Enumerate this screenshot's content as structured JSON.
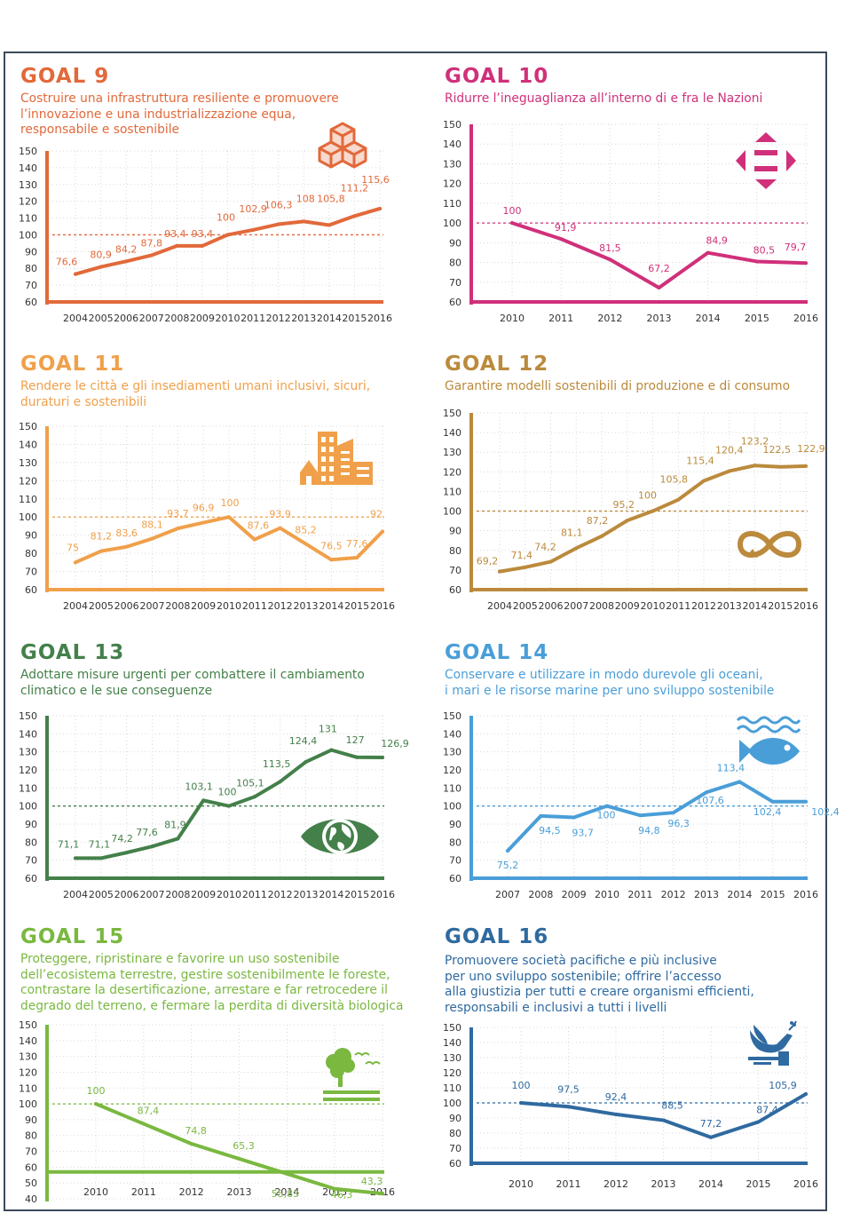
{
  "panels": [
    {
      "goal": "GOAL 9",
      "subtitle": [
        "Costruire una infrastruttura resiliente e promuovere",
        "l’innovazione e una industrializzazione equa,",
        "responsabile e sostenibile"
      ],
      "color": "#e2693a",
      "icon": "cubes-icon"
    },
    {
      "goal": "GOAL 10",
      "subtitle": [
        "Ridurre l’ineguaglianza all’interno di e fra le Nazioni"
      ],
      "color": "#d0307a",
      "icon": "equality-arrows-icon"
    },
    {
      "goal": "GOAL 11",
      "subtitle": [
        "Rendere le città e gli insediamenti umani inclusivi, sicuri,",
        "duraturi e sostenibili"
      ],
      "color": "#f0a04a",
      "icon": "city-buildings-icon"
    },
    {
      "goal": "GOAL 12",
      "subtitle": [
        "Garantire modelli sostenibili di produzione e di consumo"
      ],
      "color": "#bb8a3c",
      "icon": "infinity-icon"
    },
    {
      "goal": "GOAL 13",
      "subtitle": [
        "Adottare misure urgenti per combattere il cambiamento",
        "climatico e le sue conseguenze"
      ],
      "color": "#44804a",
      "icon": "eye-globe-icon"
    },
    {
      "goal": "GOAL 14",
      "subtitle": [
        "Conservare e utilizzare in modo durevole gli oceani,",
        "i mari e le risorse marine per uno sviluppo sostenibile"
      ],
      "color": "#4a9ed8",
      "icon": "fish-waves-icon"
    },
    {
      "goal": "GOAL 15",
      "subtitle": [
        "Proteggere, ripristinare e favorire un uso sostenibile",
        "dell’ecosistema terrestre, gestire sostenibilmente le foreste,",
        "contrastare la desertificazione, arrestare e far retrocedere il",
        "degrado del terreno, e fermare la perdita di diversità biologica"
      ],
      "color": "#7ab840",
      "icon": "tree-birds-icon"
    },
    {
      "goal": "GOAL 16",
      "subtitle": [
        "Promuovere società pacifiche e più inclusive",
        "per uno sviluppo sostenibile; offrire l’accesso",
        "alla giustizia per tutti e creare organismi efficienti,",
        "responsabili e inclusivi a tutti i livelli"
      ],
      "color": "#2f6aa0",
      "icon": "dove-gavel-icon"
    }
  ],
  "chart_data": [
    {
      "type": "line",
      "goal": "GOAL 9",
      "x": [
        "2004",
        "2005",
        "2006",
        "2007",
        "2008",
        "2009",
        "2010",
        "2011",
        "2012",
        "2013",
        "2014",
        "2015",
        "2016"
      ],
      "values": [
        76.6,
        80.9,
        84.2,
        87.8,
        93.4,
        93.4,
        100,
        102.9,
        106.3,
        108,
        105.8,
        111.2,
        115.6
      ],
      "labels": [
        "76,6",
        "80,9",
        "84,2",
        "87,8",
        "93,4",
        "93,4",
        "100",
        "102,9",
        "106,3",
        "108",
        "105,8",
        "111,2",
        "115,6"
      ],
      "yticks": [
        "60",
        "70",
        "80",
        "90",
        "100",
        "110",
        "120",
        "130",
        "140",
        "150"
      ],
      "ylim": [
        60,
        150
      ],
      "reference": 100
    },
    {
      "type": "line",
      "goal": "GOAL 10",
      "x": [
        "2010",
        "2011",
        "2012",
        "2013",
        "2014",
        "2015",
        "2016"
      ],
      "values": [
        100,
        91.9,
        81.5,
        67.2,
        84.9,
        80.5,
        79.7
      ],
      "labels": [
        "100",
        "91,9",
        "81,5",
        "67,2",
        "84,9",
        "80,5",
        "79,7"
      ],
      "yticks": [
        "60",
        "70",
        "80",
        "90",
        "100",
        "110",
        "120",
        "130",
        "140",
        "150"
      ],
      "ylim": [
        60,
        150
      ],
      "reference": 100
    },
    {
      "type": "line",
      "goal": "GOAL 11",
      "x": [
        "2004",
        "2005",
        "2006",
        "2007",
        "2008",
        "2009",
        "2010",
        "2011",
        "2012",
        "2013",
        "2014",
        "2015",
        "2016"
      ],
      "values": [
        75,
        81.2,
        83.6,
        88.1,
        93.7,
        96.9,
        100,
        87.6,
        93.9,
        85.2,
        76.5,
        77.6,
        92
      ],
      "labels": [
        "75",
        "81,2",
        "83,6",
        "88,1",
        "93,7",
        "96,9",
        "100",
        "87,6",
        "93,9",
        "85,2",
        "76,5",
        "77,6",
        "92"
      ],
      "yticks": [
        "60",
        "70",
        "80",
        "90",
        "100",
        "110",
        "120",
        "130",
        "140",
        "150"
      ],
      "ylim": [
        60,
        150
      ],
      "reference": 100
    },
    {
      "type": "line",
      "goal": "GOAL 12",
      "x": [
        "2004",
        "2005",
        "2006",
        "2007",
        "2008",
        "2009",
        "2010",
        "2011",
        "2012",
        "2013",
        "2014",
        "2015",
        "2016"
      ],
      "values": [
        69.2,
        71.4,
        74.2,
        81.1,
        87.2,
        95.2,
        100,
        105.8,
        115.4,
        120.4,
        123.2,
        122.5,
        122.9
      ],
      "labels": [
        "69,2",
        "71,4",
        "74,2",
        "81,1",
        "87,2",
        "95,2",
        "100",
        "105,8",
        "115,4",
        "120,4",
        "123,2",
        "122,5",
        "122,9"
      ],
      "yticks": [
        "60",
        "70",
        "80",
        "90",
        "100",
        "110",
        "120",
        "130",
        "140",
        "150"
      ],
      "ylim": [
        60,
        150
      ],
      "reference": 100
    },
    {
      "type": "line",
      "goal": "GOAL 13",
      "x": [
        "2004",
        "2005",
        "2006",
        "2007",
        "2008",
        "2009",
        "2010",
        "2011",
        "2012",
        "2013",
        "2014",
        "2015",
        "2016"
      ],
      "values": [
        71.1,
        71.1,
        74.2,
        77.6,
        81.9,
        103.1,
        100,
        105.1,
        113.5,
        124.4,
        131,
        127,
        126.9
      ],
      "labels": [
        "71,1",
        "71,1",
        "74,2",
        "77,6",
        "81,9",
        "103,1",
        "100",
        "105,1",
        "113,5",
        "124,4",
        "131",
        "127",
        "126,9"
      ],
      "yticks": [
        "60",
        "70",
        "80",
        "90",
        "100",
        "110",
        "120",
        "130",
        "140",
        "150"
      ],
      "ylim": [
        60,
        150
      ],
      "reference": 100
    },
    {
      "type": "line",
      "goal": "GOAL 14",
      "x": [
        "2007",
        "2008",
        "2009",
        "2010",
        "2011",
        "2012",
        "2013",
        "2014",
        "2015",
        "2016"
      ],
      "values": [
        75.2,
        94.5,
        93.7,
        100,
        94.8,
        96.3,
        107.6,
        113.4,
        102.4,
        102.4
      ],
      "labels": [
        "75,2",
        "94,5",
        "93,7",
        "100",
        "94,8",
        "96,3",
        "107,6",
        "113,4",
        "102,4",
        "102,4"
      ],
      "yticks": [
        "60",
        "70",
        "80",
        "90",
        "100",
        "110",
        "120",
        "130",
        "140",
        "150"
      ],
      "ylim": [
        60,
        150
      ],
      "reference": 100
    },
    {
      "type": "line",
      "goal": "GOAL 15",
      "x": [
        "2010",
        "2011",
        "2012",
        "2013",
        "2014",
        "2015",
        "2016"
      ],
      "values": [
        100,
        87.4,
        74.8,
        65.3,
        55.83,
        46.3,
        43.3
      ],
      "labels": [
        "100",
        "87,4",
        "74,8",
        "65,3",
        "55,83",
        "46,3",
        "43,3"
      ],
      "yticks": [
        "40",
        "50",
        "60",
        "70",
        "80",
        "90",
        "100",
        "110",
        "120",
        "130",
        "140",
        "150"
      ],
      "ylim": [
        40,
        150
      ],
      "reference": 100,
      "baseline": 57
    },
    {
      "type": "line",
      "goal": "GOAL 16",
      "x": [
        "2010",
        "2011",
        "2012",
        "2013",
        "2014",
        "2015",
        "2016"
      ],
      "values": [
        100,
        97.5,
        92.4,
        88.5,
        77.2,
        87.4,
        105.9
      ],
      "labels": [
        "100",
        "97,5",
        "92,4",
        "88,5",
        "77,2",
        "87,4",
        "105,9"
      ],
      "yticks": [
        "60",
        "70",
        "80",
        "90",
        "100",
        "110",
        "120",
        "130",
        "140",
        "150"
      ],
      "ylim": [
        60,
        150
      ],
      "reference": 100
    }
  ]
}
